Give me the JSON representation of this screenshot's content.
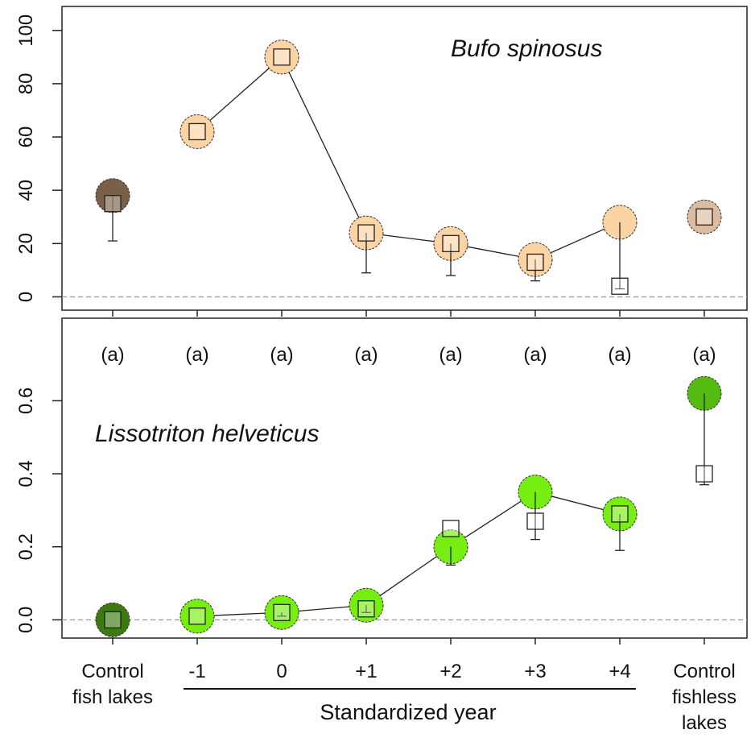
{
  "chart_data": [
    {
      "type": "line",
      "title": "Bufo spinosus",
      "ylim": [
        -5,
        109
      ],
      "yticks": [
        0,
        20,
        40,
        60,
        80,
        100
      ],
      "group_labels": [
        "(a)",
        "(a)",
        "(a)",
        "(a)",
        "(a)",
        "(a)",
        "(a)",
        "(a)"
      ],
      "circle_values": [
        38,
        62,
        90,
        24,
        20,
        14,
        28,
        30
      ],
      "circle_colors": [
        "#7a6047",
        "#fcd4a4",
        "#fcd4a4",
        "#fcd4a4",
        "#fcd4a4",
        "#fcd4a4",
        "#fcd4a4",
        "#dcbb9e"
      ],
      "square_values": [
        35,
        62,
        90,
        24,
        20,
        13,
        4,
        30
      ],
      "lower_values": [
        21,
        null,
        null,
        9,
        8,
        6,
        3,
        null
      ]
    },
    {
      "type": "line",
      "title": "Lissotriton helveticus",
      "categories": [
        "Control fish lakes",
        "-1",
        "0",
        "+1",
        "+2",
        "+3",
        "+4",
        "Control fishless lakes"
      ],
      "xlabel": "Standardized year",
      "ylim": [
        -0.05,
        0.826
      ],
      "yticks": [
        {
          "value": 0,
          "label": "0.0"
        },
        0.2,
        0.4,
        0.6
      ],
      "circle_values": [
        0,
        0.01,
        0.02,
        0.04,
        0.2,
        0.35,
        0.29,
        0.62
      ],
      "circle_colors": [
        "#3a7a10",
        "#77ee11",
        "#77ee11",
        "#77ee11",
        "#77ee11",
        "#77ee11",
        "#77ee11",
        "#55bb11"
      ],
      "square_values": [
        0,
        0.01,
        0.02,
        0.03,
        0.25,
        0.27,
        0.29,
        0.4
      ],
      "lower_values": [
        null,
        null,
        0.01,
        0.02,
        0.15,
        0.22,
        0.19,
        0.37
      ]
    }
  ]
}
